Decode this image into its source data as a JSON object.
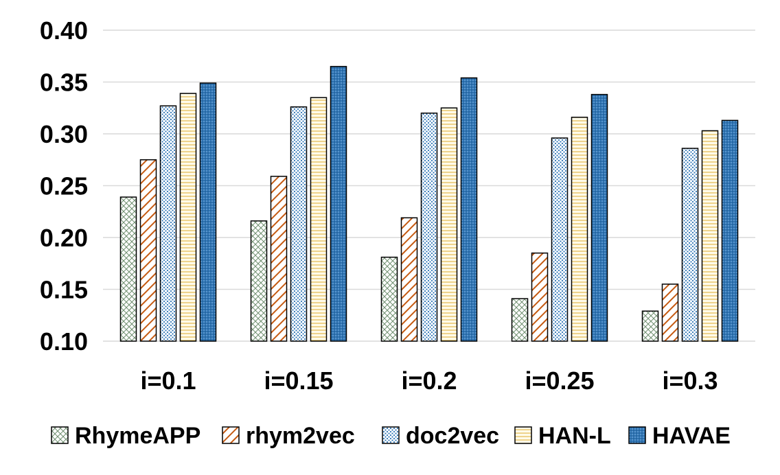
{
  "chart_data": {
    "type": "bar",
    "title": "",
    "xlabel": "",
    "ylabel": "",
    "ylim": [
      0.1,
      0.4
    ],
    "yticks": [
      "0.10",
      "0.15",
      "0.20",
      "0.25",
      "0.30",
      "0.35",
      "0.40"
    ],
    "grid": true,
    "legend_position": "bottom",
    "categories": [
      "i=0.1",
      "i=0.15",
      "i=0.2",
      "i=0.25",
      "i=0.3"
    ],
    "series": [
      {
        "name": "RhymeAPP",
        "pattern": "crosshatch",
        "color": "#5f7f5f",
        "fill": "#ffffff",
        "values": [
          0.239,
          0.216,
          0.181,
          0.141,
          0.129
        ]
      },
      {
        "name": "rhym2vec",
        "pattern": "diagonal",
        "color": "#c55a11",
        "fill": "#ffffff",
        "values": [
          0.275,
          0.259,
          0.219,
          0.185,
          0.155
        ]
      },
      {
        "name": "doc2vec",
        "pattern": "dots",
        "color": "#2e75b6",
        "fill": "#ffffff",
        "values": [
          0.327,
          0.326,
          0.32,
          0.296,
          0.286
        ]
      },
      {
        "name": "HAN-L",
        "pattern": "horizontal",
        "color": "#e0b040",
        "fill": "#fff9e0",
        "values": [
          0.339,
          0.335,
          0.325,
          0.316,
          0.303
        ]
      },
      {
        "name": "HAVAE",
        "pattern": "dense-dots",
        "color": "#1f4e79",
        "fill": "#2e75b6",
        "values": [
          0.349,
          0.365,
          0.354,
          0.338,
          0.313
        ]
      }
    ]
  }
}
